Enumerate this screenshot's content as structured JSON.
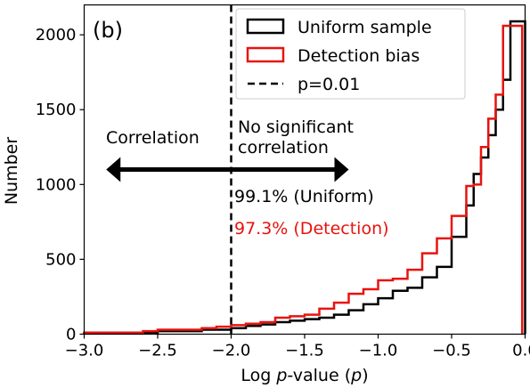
{
  "chart_data": {
    "type": "histogram",
    "panel_label": "(b)",
    "xlabel_pre": "Log ",
    "xlabel_p": "p",
    "xlabel_mid": "-value (",
    "xlabel_post": ")",
    "ylabel": "Number",
    "xlim": [
      -3.0,
      0.0
    ],
    "ylim": [
      0,
      2200
    ],
    "xticks": [
      -3.0,
      -2.5,
      -2.0,
      -1.5,
      -1.0,
      -0.5,
      0.0
    ],
    "xtick_labels": [
      "−3.0",
      "−2.5",
      "−2.0",
      "−1.5",
      "−1.0",
      "−0.5",
      "0.0"
    ],
    "yticks": [
      0,
      500,
      1000,
      1500,
      2000
    ],
    "ytick_labels": [
      "0",
      "500",
      "1000",
      "1500",
      "2000"
    ],
    "grid": false,
    "legend_position": "top-right",
    "series": [
      {
        "name": "Uniform sample",
        "color": "#000000",
        "style": "step",
        "edges": [
          -3.0,
          -2.5,
          -2.2,
          -2.0,
          -1.9,
          -1.8,
          -1.7,
          -1.6,
          -1.5,
          -1.4,
          -1.3,
          -1.2,
          -1.1,
          -1.0,
          -0.9,
          -0.8,
          -0.7,
          -0.6,
          -0.5,
          -0.4,
          -0.35,
          -0.3,
          -0.25,
          -0.2,
          -0.15,
          -0.1,
          0.0
        ],
        "values": [
          10,
          20,
          30,
          40,
          55,
          65,
          80,
          90,
          100,
          110,
          130,
          160,
          200,
          240,
          290,
          310,
          380,
          450,
          650,
          860,
          1070,
          1180,
          1330,
          1500,
          1700,
          2090
        ]
      },
      {
        "name": "Detection bias",
        "color": "#e8130f",
        "style": "step",
        "edges": [
          -3.0,
          -2.6,
          -2.5,
          -2.2,
          -2.1,
          -2.0,
          -1.9,
          -1.8,
          -1.7,
          -1.6,
          -1.5,
          -1.4,
          -1.3,
          -1.2,
          -1.1,
          -1.0,
          -0.9,
          -0.8,
          -0.7,
          -0.6,
          -0.5,
          -0.4,
          -0.35,
          -0.3,
          -0.25,
          -0.2,
          -0.15,
          -0.1,
          -0.02
        ],
        "values": [
          10,
          20,
          30,
          40,
          50,
          60,
          70,
          80,
          110,
          120,
          130,
          170,
          210,
          270,
          300,
          360,
          370,
          430,
          540,
          640,
          790,
          990,
          1000,
          1250,
          1440,
          1600,
          2060,
          2060
        ]
      }
    ],
    "threshold_line": {
      "name": "p=0.01",
      "x": -2.0,
      "color": "#000000",
      "style": "dashed"
    },
    "annotations": {
      "left_label": "Correlation",
      "right_label_line1": "No significant",
      "right_label_line2": "correlation",
      "uniform_pct": "99.1% (Uniform)",
      "detection_pct": "97.3% (Detection)",
      "arrow": {
        "from_x": -2.85,
        "to_x": -1.2,
        "y": 1100
      }
    }
  }
}
